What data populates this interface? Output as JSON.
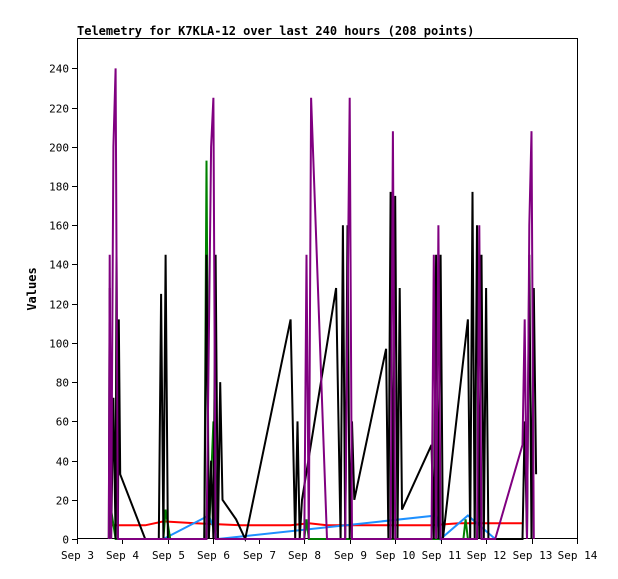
{
  "chart_data": {
    "type": "line",
    "title": "Telemetry for K7KLA-12 over last 240 hours (208 points)",
    "xlabel": "",
    "ylabel": "Values",
    "x_ticks": [
      "Sep 3",
      "Sep 4",
      "Sep 5",
      "Sep 6",
      "Sep 7",
      "Sep 8",
      "Sep 9",
      "Sep 10",
      "Sep 11",
      "Sep 12",
      "Sep 13",
      "Sep 14"
    ],
    "xlim": [
      0,
      11
    ],
    "ylim": [
      0,
      255
    ],
    "y_ticks": [
      0,
      20,
      40,
      60,
      80,
      100,
      120,
      140,
      160,
      180,
      200,
      220,
      240
    ],
    "grid": false,
    "legend": "none",
    "series": [
      {
        "color": "#ff0000",
        "points": [
          [
            0.7,
            7
          ],
          [
            1.5,
            7
          ],
          [
            1.9,
            9
          ],
          [
            2.6,
            8
          ],
          [
            3.6,
            7
          ],
          [
            4.7,
            7
          ],
          [
            5.1,
            8
          ],
          [
            5.5,
            7
          ],
          [
            6.8,
            7
          ],
          [
            7.4,
            7
          ],
          [
            7.8,
            7
          ],
          [
            8.4,
            8
          ],
          [
            8.9,
            8
          ],
          [
            9.8,
            8
          ]
        ]
      },
      {
        "color": "#1e90ff",
        "points": [
          [
            1.5,
            0
          ],
          [
            1.9,
            0
          ],
          [
            2.9,
            12
          ],
          [
            3.1,
            0
          ],
          [
            7.9,
            12
          ],
          [
            8.0,
            0
          ],
          [
            8.6,
            12
          ],
          [
            9.2,
            0
          ]
        ]
      },
      {
        "color": "#008000",
        "points": [
          [
            0.7,
            0
          ],
          [
            0.75,
            15
          ],
          [
            0.85,
            0
          ],
          [
            1.9,
            0
          ],
          [
            1.95,
            15
          ],
          [
            2.05,
            0
          ],
          [
            2.8,
            0
          ],
          [
            2.85,
            193
          ],
          [
            2.9,
            0
          ],
          [
            3.0,
            60
          ],
          [
            3.1,
            0
          ],
          [
            5.0,
            0
          ],
          [
            5.05,
            10
          ],
          [
            5.1,
            0
          ],
          [
            8.5,
            0
          ],
          [
            8.55,
            10
          ],
          [
            8.6,
            0
          ]
        ]
      },
      {
        "color": "#000000",
        "points": [
          [
            0.7,
            0
          ],
          [
            0.72,
            128
          ],
          [
            0.75,
            0
          ],
          [
            0.8,
            72
          ],
          [
            0.85,
            0
          ],
          [
            0.87,
            145
          ],
          [
            0.9,
            0
          ],
          [
            0.92,
            112
          ],
          [
            0.95,
            33
          ],
          [
            1.5,
            0
          ],
          [
            1.8,
            0
          ],
          [
            1.85,
            125
          ],
          [
            1.9,
            0
          ],
          [
            1.95,
            145
          ],
          [
            2.0,
            0
          ],
          [
            2.8,
            0
          ],
          [
            2.85,
            145
          ],
          [
            2.9,
            0
          ],
          [
            2.95,
            40
          ],
          [
            3.0,
            0
          ],
          [
            3.05,
            145
          ],
          [
            3.1,
            0
          ],
          [
            3.15,
            80
          ],
          [
            3.2,
            20
          ],
          [
            3.5,
            10
          ],
          [
            3.7,
            0
          ],
          [
            4.7,
            112
          ],
          [
            4.8,
            0
          ],
          [
            4.85,
            60
          ],
          [
            4.9,
            0
          ],
          [
            4.95,
            20
          ],
          [
            5.7,
            128
          ],
          [
            5.8,
            0
          ],
          [
            5.85,
            160
          ],
          [
            5.9,
            0
          ],
          [
            5.95,
            160
          ],
          [
            6.0,
            0
          ],
          [
            6.05,
            60
          ],
          [
            6.1,
            20
          ],
          [
            6.8,
            97
          ],
          [
            6.85,
            0
          ],
          [
            6.9,
            177
          ],
          [
            6.95,
            0
          ],
          [
            7.0,
            175
          ],
          [
            7.05,
            0
          ],
          [
            7.1,
            128
          ],
          [
            7.15,
            15
          ],
          [
            7.8,
            48
          ],
          [
            7.85,
            0
          ],
          [
            7.9,
            145
          ],
          [
            7.95,
            0
          ],
          [
            8.0,
            145
          ],
          [
            8.05,
            0
          ],
          [
            8.6,
            112
          ],
          [
            8.65,
            0
          ],
          [
            8.7,
            177
          ],
          [
            8.75,
            0
          ],
          [
            8.8,
            160
          ],
          [
            8.85,
            0
          ],
          [
            8.9,
            145
          ],
          [
            8.95,
            0
          ],
          [
            9.0,
            128
          ],
          [
            9.05,
            0
          ],
          [
            9.8,
            0
          ],
          [
            9.85,
            60
          ],
          [
            9.9,
            0
          ],
          [
            9.95,
            145
          ],
          [
            10.0,
            0
          ],
          [
            10.05,
            128
          ],
          [
            10.1,
            33
          ]
        ]
      },
      {
        "color": "#800080",
        "points": [
          [
            0.7,
            0
          ],
          [
            0.72,
            145
          ],
          [
            0.75,
            0
          ],
          [
            0.8,
            200
          ],
          [
            0.85,
            240
          ],
          [
            0.9,
            0
          ],
          [
            2.85,
            0
          ],
          [
            2.95,
            200
          ],
          [
            3.0,
            225
          ],
          [
            3.05,
            0
          ],
          [
            5.0,
            0
          ],
          [
            5.05,
            145
          ],
          [
            5.1,
            0
          ],
          [
            5.15,
            225
          ],
          [
            5.5,
            0
          ],
          [
            5.9,
            0
          ],
          [
            6.0,
            225
          ],
          [
            6.05,
            0
          ],
          [
            6.8,
            0
          ],
          [
            6.9,
            0
          ],
          [
            6.95,
            208
          ],
          [
            7.0,
            0
          ],
          [
            7.8,
            0
          ],
          [
            7.85,
            145
          ],
          [
            7.9,
            0
          ],
          [
            7.95,
            160
          ],
          [
            8.0,
            0
          ],
          [
            8.8,
            0
          ],
          [
            8.85,
            160
          ],
          [
            8.9,
            0
          ],
          [
            9.2,
            0
          ],
          [
            9.8,
            48
          ],
          [
            9.85,
            112
          ],
          [
            9.9,
            0
          ],
          [
            9.95,
            160
          ],
          [
            10.0,
            208
          ],
          [
            10.05,
            0
          ]
        ]
      }
    ]
  }
}
